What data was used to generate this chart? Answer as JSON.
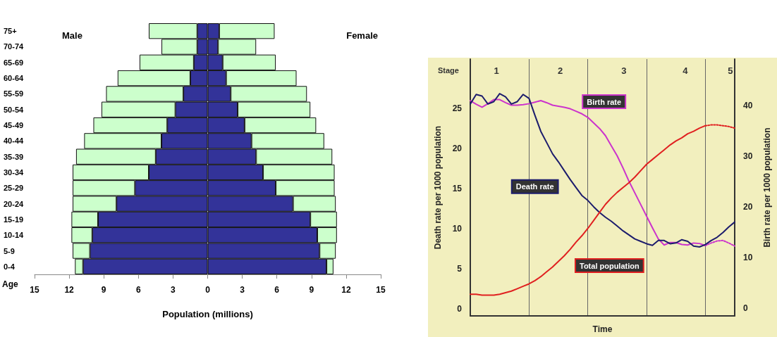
{
  "chart_data": [
    {
      "type": "bar",
      "orientation": "horizontal",
      "stacked": true,
      "ylabel": "Age",
      "xlabel": "Population (millions)",
      "annotations": [
        "Male",
        "Female"
      ],
      "grid": false,
      "legend": false,
      "categories": [
        "75+",
        "70-74",
        "65-69",
        "60-64",
        "55-59",
        "50-54",
        "45-49",
        "40-44",
        "35-39",
        "30-34",
        "25-29",
        "20-24",
        "15-19",
        "10-14",
        "5-9",
        "0-4"
      ],
      "xlim": [
        -15,
        15
      ],
      "xticks": [
        {
          "value": -15,
          "label": "15"
        },
        {
          "value": -12,
          "label": "12"
        },
        {
          "value": -9,
          "label": "9"
        },
        {
          "value": -6,
          "label": "6"
        },
        {
          "value": -3,
          "label": "3"
        },
        0,
        3,
        6,
        9,
        12,
        15
      ],
      "series": [
        {
          "color": "#333399",
          "values": [
            -0.9,
            -0.9,
            -1.2,
            -1.5,
            -2.1,
            -2.8,
            -3.5,
            -4.0,
            -4.5,
            -5.1,
            -6.3,
            -7.9,
            -9.5,
            -10.0,
            -10.2,
            -10.8
          ]
        },
        {
          "color": "#ccffcc",
          "values": [
            -4.2,
            -3.1,
            -4.7,
            -6.3,
            -6.7,
            -6.4,
            -6.4,
            -6.7,
            -6.9,
            -6.6,
            -5.4,
            -3.8,
            -2.3,
            -1.8,
            -1.5,
            -0.7
          ]
        },
        {
          "color": "#333399",
          "values": [
            1.0,
            0.9,
            1.3,
            1.6,
            2.0,
            2.6,
            3.2,
            3.8,
            4.2,
            4.8,
            5.9,
            7.4,
            8.9,
            9.5,
            9.7,
            10.3
          ]
        },
        {
          "color": "#ccffcc",
          "values": [
            4.8,
            3.3,
            4.6,
            6.1,
            6.6,
            6.3,
            6.2,
            6.3,
            6.6,
            6.2,
            5.1,
            3.7,
            2.3,
            1.7,
            1.4,
            0.6
          ]
        }
      ]
    },
    {
      "type": "line",
      "xlabel": "Time",
      "ylabel": "Death rate per 1000 population",
      "y2label": "Birth rate per 1000 population",
      "annotations": [
        "Stage",
        "1",
        "2",
        "3",
        "4",
        "5"
      ],
      "grid": "x",
      "legend": false,
      "marker": "none",
      "categories": [
        null,
        null,
        null,
        null,
        null,
        null,
        null,
        null,
        null,
        null,
        null,
        null,
        null,
        null,
        null,
        null,
        null,
        null,
        null,
        null,
        null,
        null,
        null,
        null,
        null,
        null,
        null,
        null,
        null,
        null,
        null,
        null,
        null,
        null,
        null,
        null,
        null,
        null,
        null,
        null,
        null,
        null,
        null,
        null,
        null,
        null
      ],
      "ylim": [
        -0.9,
        31.1
      ],
      "yticks": [
        0,
        5,
        10,
        15,
        20,
        25
      ],
      "y2lim": [
        -1.6,
        49.1
      ],
      "y2ticks": [
        0,
        10,
        20,
        30,
        40
      ],
      "series": [
        {
          "name": "Birth rate",
          "color": "#cc33cc",
          "axis": "y2",
          "line_style": "solid",
          "values": [
            40.9,
            40.2,
            39.6,
            40.3,
            41.1,
            41.1,
            40.5,
            40.0,
            40.0,
            40.1,
            40.3,
            40.6,
            40.9,
            40.5,
            40.0,
            39.8,
            39.6,
            39.3,
            38.8,
            38.3,
            37.6,
            36.5,
            35.4,
            34.0,
            32.0,
            30.0,
            27.6,
            25.0,
            22.7,
            20.4,
            18.1,
            15.8,
            13.6,
            12.4,
            12.9,
            12.9,
            12.5,
            12.4,
            12.8,
            12.7,
            12.3,
            null,
            null,
            null,
            null,
            null
          ]
        },
        {
          "color": "#cc33cc",
          "axis": "y2",
          "line_style": "dotted",
          "values": [
            null,
            null,
            null,
            null,
            null,
            null,
            null,
            null,
            null,
            null,
            null,
            null,
            null,
            null,
            null,
            null,
            null,
            null,
            null,
            null,
            null,
            null,
            null,
            null,
            null,
            null,
            null,
            null,
            null,
            null,
            null,
            null,
            null,
            null,
            null,
            null,
            null,
            null,
            null,
            null,
            12.3,
            12.8,
            13.2,
            13.3,
            12.8,
            12.2
          ]
        },
        {
          "name": "Death rate",
          "color": "#1c1c6c",
          "line_style": "solid",
          "values": [
            25.5,
            26.7,
            26.5,
            25.5,
            25.8,
            26.8,
            26.4,
            25.5,
            25.8,
            26.7,
            26.2,
            24.1,
            22.1,
            20.7,
            19.3,
            18.3,
            17.2,
            16.1,
            15.1,
            14.1,
            13.5,
            12.7,
            12.0,
            11.4,
            10.9,
            10.3,
            9.7,
            9.2,
            8.7,
            8.4,
            8.1,
            7.9,
            8.5,
            8.5,
            8.1,
            8.2,
            8.6,
            8.4,
            7.8,
            7.7,
            8.0,
            8.5,
            8.9,
            9.5,
            10.2,
            10.8
          ]
        },
        {
          "name": "Total population",
          "color": "#e02020",
          "line_style": "solid",
          "values": [
            1.8,
            1.8,
            1.7,
            1.7,
            1.7,
            1.8,
            2.0,
            2.2,
            2.5,
            2.8,
            3.1,
            3.5,
            4.0,
            4.6,
            5.2,
            5.9,
            6.6,
            7.4,
            8.3,
            9.1,
            10.0,
            11.0,
            12.0,
            13.0,
            13.8,
            14.5,
            15.1,
            15.7,
            16.4,
            17.2,
            18.0,
            18.6,
            19.2,
            19.8,
            20.4,
            20.9,
            21.3,
            21.8,
            22.1,
            22.5,
            22.8,
            null,
            null,
            null,
            null,
            null
          ]
        },
        {
          "color": "#e02020",
          "line_style": "dotted",
          "values": [
            null,
            null,
            null,
            null,
            null,
            null,
            null,
            null,
            null,
            null,
            null,
            null,
            null,
            null,
            null,
            null,
            null,
            null,
            null,
            null,
            null,
            null,
            null,
            null,
            null,
            null,
            null,
            null,
            null,
            null,
            null,
            null,
            null,
            null,
            null,
            null,
            null,
            null,
            null,
            null,
            22.8,
            22.9,
            22.9,
            22.8,
            22.7,
            22.5
          ]
        }
      ]
    }
  ]
}
